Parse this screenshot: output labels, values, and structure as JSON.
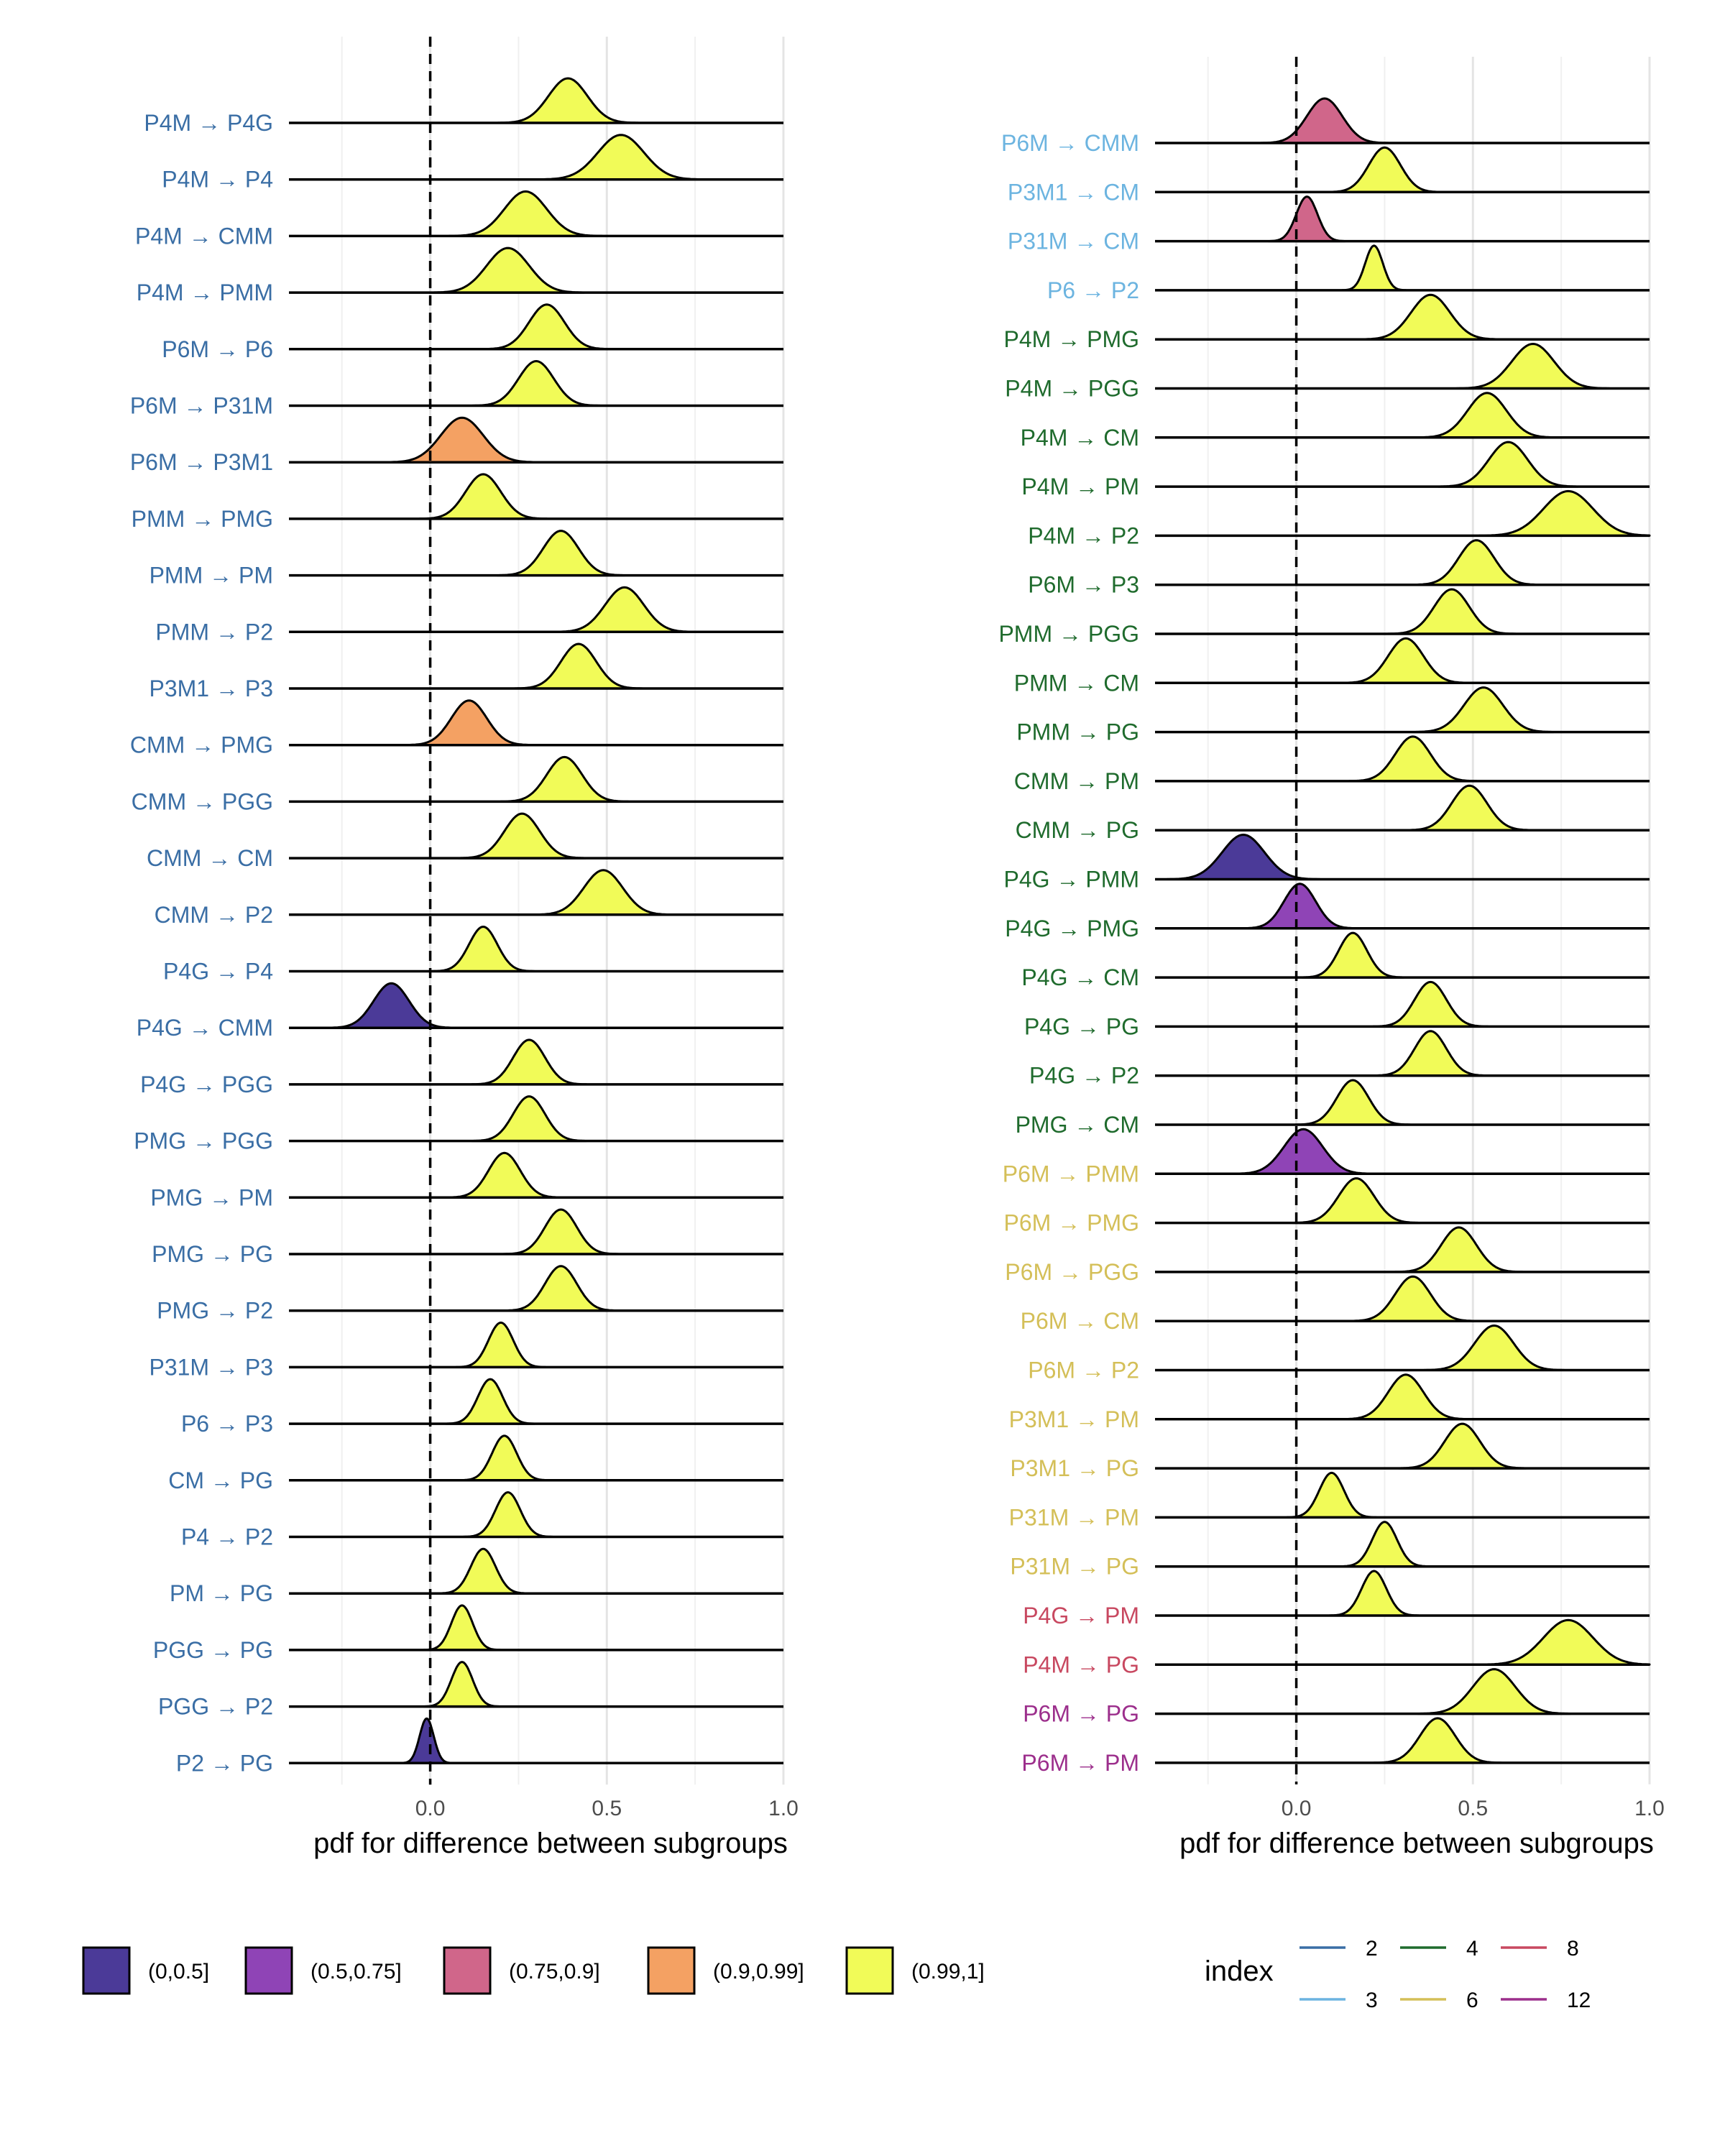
{
  "chart_data": [
    {
      "type": "ridgeline",
      "xlabel": "pdf for difference between subgroups",
      "xlim": [
        -0.4,
        1.0
      ],
      "xticks": [
        "0.0",
        "0.5",
        "1.0"
      ],
      "xtick_values": [
        0.0,
        0.5,
        1.0
      ],
      "reference_line_x": 0,
      "rows": [
        {
          "label": "P4M → P4G",
          "index": 2,
          "mean": 0.39,
          "sd": 0.055,
          "bin": "(0.99,1]"
        },
        {
          "label": "P4M → P4",
          "index": 2,
          "mean": 0.54,
          "sd": 0.065,
          "bin": "(0.99,1]"
        },
        {
          "label": "P4M → CMM",
          "index": 2,
          "mean": 0.27,
          "sd": 0.06,
          "bin": "(0.99,1]"
        },
        {
          "label": "P4M → PMM",
          "index": 2,
          "mean": 0.22,
          "sd": 0.06,
          "bin": "(0.99,1]"
        },
        {
          "label": "P6M → P6",
          "index": 2,
          "mean": 0.33,
          "sd": 0.05,
          "bin": "(0.99,1]"
        },
        {
          "label": "P6M → P31M",
          "index": 2,
          "mean": 0.3,
          "sd": 0.05,
          "bin": "(0.99,1]"
        },
        {
          "label": "P6M → P3M1",
          "index": 2,
          "mean": 0.09,
          "sd": 0.06,
          "bin": "(0.9,0.99]"
        },
        {
          "label": "PMM → PMG",
          "index": 2,
          "mean": 0.15,
          "sd": 0.05,
          "bin": "(0.99,1]"
        },
        {
          "label": "PMM → PM",
          "index": 2,
          "mean": 0.37,
          "sd": 0.05,
          "bin": "(0.99,1]"
        },
        {
          "label": "PMM → P2",
          "index": 2,
          "mean": 0.55,
          "sd": 0.055,
          "bin": "(0.99,1]"
        },
        {
          "label": "P3M1 → P3",
          "index": 2,
          "mean": 0.42,
          "sd": 0.05,
          "bin": "(0.99,1]"
        },
        {
          "label": "CMM → PMG",
          "index": 2,
          "mean": 0.11,
          "sd": 0.05,
          "bin": "(0.9,0.99]"
        },
        {
          "label": "CMM → PGG",
          "index": 2,
          "mean": 0.38,
          "sd": 0.05,
          "bin": "(0.99,1]"
        },
        {
          "label": "CMM → CM",
          "index": 2,
          "mean": 0.26,
          "sd": 0.05,
          "bin": "(0.99,1]"
        },
        {
          "label": "CMM → P2",
          "index": 2,
          "mean": 0.49,
          "sd": 0.055,
          "bin": "(0.99,1]"
        },
        {
          "label": "P4G → P4",
          "index": 2,
          "mean": 0.15,
          "sd": 0.04,
          "bin": "(0.99,1]"
        },
        {
          "label": "P4G → CMM",
          "index": 2,
          "mean": -0.11,
          "sd": 0.05,
          "bin": "(0,0.5]"
        },
        {
          "label": "P4G → PGG",
          "index": 2,
          "mean": 0.28,
          "sd": 0.045,
          "bin": "(0.99,1]"
        },
        {
          "label": "PMG → PGG",
          "index": 2,
          "mean": 0.28,
          "sd": 0.045,
          "bin": "(0.99,1]"
        },
        {
          "label": "PMG → PM",
          "index": 2,
          "mean": 0.21,
          "sd": 0.045,
          "bin": "(0.99,1]"
        },
        {
          "label": "PMG → PG",
          "index": 2,
          "mean": 0.37,
          "sd": 0.045,
          "bin": "(0.99,1]"
        },
        {
          "label": "PMG → P2",
          "index": 2,
          "mean": 0.37,
          "sd": 0.045,
          "bin": "(0.99,1]"
        },
        {
          "label": "P31M → P3",
          "index": 2,
          "mean": 0.2,
          "sd": 0.035,
          "bin": "(0.99,1]"
        },
        {
          "label": "P6 → P3",
          "index": 2,
          "mean": 0.17,
          "sd": 0.035,
          "bin": "(0.99,1]"
        },
        {
          "label": "CM → PG",
          "index": 2,
          "mean": 0.21,
          "sd": 0.035,
          "bin": "(0.99,1]"
        },
        {
          "label": "P4 → P2",
          "index": 2,
          "mean": 0.22,
          "sd": 0.035,
          "bin": "(0.99,1]"
        },
        {
          "label": "PM → PG",
          "index": 2,
          "mean": 0.15,
          "sd": 0.035,
          "bin": "(0.99,1]"
        },
        {
          "label": "PGG → PG",
          "index": 2,
          "mean": 0.09,
          "sd": 0.03,
          "bin": "(0.99,1]"
        },
        {
          "label": "PGG → P2",
          "index": 2,
          "mean": 0.09,
          "sd": 0.03,
          "bin": "(0.99,1]"
        },
        {
          "label": "P2 → PG",
          "index": 2,
          "mean": -0.01,
          "sd": 0.02,
          "bin": "(0,0.5]"
        }
      ]
    },
    {
      "type": "ridgeline",
      "xlabel": "pdf for difference between subgroups",
      "xlim": [
        -0.4,
        1.0
      ],
      "xticks": [
        "0.0",
        "0.5",
        "1.0"
      ],
      "xtick_values": [
        0.0,
        0.5,
        1.0
      ],
      "reference_line_x": 0,
      "rows": [
        {
          "label": "P6M → CMM",
          "index": 3,
          "mean": 0.08,
          "sd": 0.05,
          "bin": "(0.75,0.9]"
        },
        {
          "label": "P3M1 → CM",
          "index": 3,
          "mean": 0.25,
          "sd": 0.045,
          "bin": "(0.99,1]"
        },
        {
          "label": "P31M → CM",
          "index": 3,
          "mean": 0.03,
          "sd": 0.03,
          "bin": "(0.75,0.9]"
        },
        {
          "label": "P6 → P2",
          "index": 3,
          "mean": 0.22,
          "sd": 0.025,
          "bin": "(0.99,1]"
        },
        {
          "label": "P4M → PMG",
          "index": 4,
          "mean": 0.38,
          "sd": 0.055,
          "bin": "(0.99,1]"
        },
        {
          "label": "P4M → PGG",
          "index": 4,
          "mean": 0.67,
          "sd": 0.06,
          "bin": "(0.99,1]"
        },
        {
          "label": "P4M → CM",
          "index": 4,
          "mean": 0.54,
          "sd": 0.055,
          "bin": "(0.99,1]"
        },
        {
          "label": "P4M → PM",
          "index": 4,
          "mean": 0.6,
          "sd": 0.055,
          "bin": "(0.99,1]"
        },
        {
          "label": "P4M → P2",
          "index": 4,
          "mean": 0.77,
          "sd": 0.07,
          "bin": "(0.99,1]"
        },
        {
          "label": "P6M → P3",
          "index": 4,
          "mean": 0.51,
          "sd": 0.05,
          "bin": "(0.99,1]"
        },
        {
          "label": "PMM → PGG",
          "index": 4,
          "mean": 0.44,
          "sd": 0.05,
          "bin": "(0.99,1]"
        },
        {
          "label": "PMM → CM",
          "index": 4,
          "mean": 0.31,
          "sd": 0.05,
          "bin": "(0.99,1]"
        },
        {
          "label": "PMM → PG",
          "index": 4,
          "mean": 0.53,
          "sd": 0.055,
          "bin": "(0.99,1]"
        },
        {
          "label": "CMM → PM",
          "index": 4,
          "mean": 0.33,
          "sd": 0.05,
          "bin": "(0.99,1]"
        },
        {
          "label": "CMM → PG",
          "index": 4,
          "mean": 0.49,
          "sd": 0.05,
          "bin": "(0.99,1]"
        },
        {
          "label": "P4G → PMM",
          "index": 4,
          "mean": -0.15,
          "sd": 0.06,
          "bin": "(0,0.5]"
        },
        {
          "label": "P4G → PMG",
          "index": 4,
          "mean": 0.01,
          "sd": 0.045,
          "bin": "(0.5,0.75]"
        },
        {
          "label": "P4G → CM",
          "index": 4,
          "mean": 0.16,
          "sd": 0.04,
          "bin": "(0.99,1]"
        },
        {
          "label": "P4G → PG",
          "index": 4,
          "mean": 0.38,
          "sd": 0.045,
          "bin": "(0.99,1]"
        },
        {
          "label": "P4G → P2",
          "index": 4,
          "mean": 0.38,
          "sd": 0.045,
          "bin": "(0.99,1]"
        },
        {
          "label": "PMG → CM",
          "index": 4,
          "mean": 0.16,
          "sd": 0.045,
          "bin": "(0.99,1]"
        },
        {
          "label": "P6M → PMM",
          "index": 6,
          "mean": 0.02,
          "sd": 0.055,
          "bin": "(0.5,0.75]"
        },
        {
          "label": "P6M → PMG",
          "index": 6,
          "mean": 0.17,
          "sd": 0.05,
          "bin": "(0.99,1]"
        },
        {
          "label": "P6M → PGG",
          "index": 6,
          "mean": 0.46,
          "sd": 0.05,
          "bin": "(0.99,1]"
        },
        {
          "label": "P6M → CM",
          "index": 6,
          "mean": 0.33,
          "sd": 0.05,
          "bin": "(0.99,1]"
        },
        {
          "label": "P6M → P2",
          "index": 6,
          "mean": 0.56,
          "sd": 0.055,
          "bin": "(0.99,1]"
        },
        {
          "label": "P3M1 → PM",
          "index": 6,
          "mean": 0.31,
          "sd": 0.05,
          "bin": "(0.99,1]"
        },
        {
          "label": "P3M1 → PG",
          "index": 6,
          "mean": 0.47,
          "sd": 0.05,
          "bin": "(0.99,1]"
        },
        {
          "label": "P31M → PM",
          "index": 6,
          "mean": 0.1,
          "sd": 0.035,
          "bin": "(0.99,1]"
        },
        {
          "label": "P31M → PG",
          "index": 6,
          "mean": 0.25,
          "sd": 0.035,
          "bin": "(0.99,1]"
        },
        {
          "label": "P4G → PM",
          "index": 8,
          "mean": 0.22,
          "sd": 0.035,
          "bin": "(0.99,1]"
        },
        {
          "label": "P4M → PG",
          "index": 8,
          "mean": 0.77,
          "sd": 0.07,
          "bin": "(0.99,1]"
        },
        {
          "label": "P6M → PG",
          "index": 12,
          "mean": 0.56,
          "sd": 0.06,
          "bin": "(0.99,1]"
        },
        {
          "label": "P6M → PM",
          "index": 12,
          "mean": 0.4,
          "sd": 0.05,
          "bin": "(0.99,1]"
        }
      ]
    }
  ],
  "fill_legend": {
    "items": [
      {
        "label": "(0,0.5]",
        "color": "#4b3a98"
      },
      {
        "label": "(0.5,0.75]",
        "color": "#8f44b6"
      },
      {
        "label": "(0.75,0.9]",
        "color": "#d0668a"
      },
      {
        "label": "(0.9,0.99]",
        "color": "#f4a163"
      },
      {
        "label": "(0.99,1]",
        "color": "#f1fb58"
      }
    ]
  },
  "index_legend": {
    "title": "index",
    "items": [
      {
        "label": "2",
        "color": "#3a6ea5"
      },
      {
        "label": "3",
        "color": "#6cb4e0"
      },
      {
        "label": "4",
        "color": "#1f6b2d"
      },
      {
        "label": "6",
        "color": "#d4bf58"
      },
      {
        "label": "8",
        "color": "#c84860"
      },
      {
        "label": "12",
        "color": "#9c2f8c"
      }
    ]
  }
}
